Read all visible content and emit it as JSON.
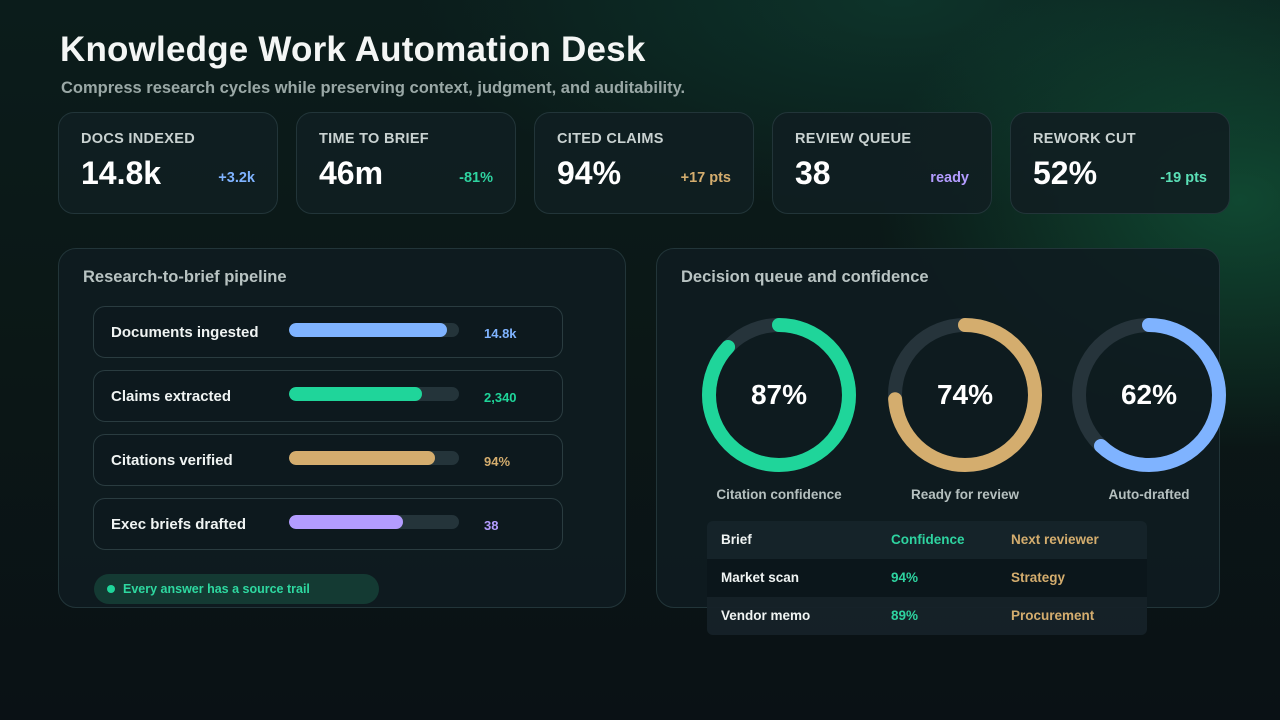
{
  "header": {
    "title": "Knowledge Work Automation Desk",
    "subtitle": "Compress research cycles while preserving context, judgment, and auditability."
  },
  "kpis": [
    {
      "label": "DOCS INDEXED",
      "value": "14.8k",
      "delta": "+3.2k",
      "delta_color": "#7fb3ff"
    },
    {
      "label": "TIME TO BRIEF",
      "value": "46m",
      "delta": "-81%",
      "delta_color": "#2ed3a0"
    },
    {
      "label": "CITED CLAIMS",
      "value": "94%",
      "delta": "+17 pts",
      "delta_color": "#d4ad6e"
    },
    {
      "label": "REVIEW QUEUE",
      "value": "38",
      "delta": "ready",
      "delta_color": "#b39cff"
    },
    {
      "label": "REWORK CUT",
      "value": "52%",
      "delta": "-19 pts",
      "delta_color": "#5be0b7"
    }
  ],
  "pipeline": {
    "title": "Research-to-brief pipeline",
    "rows": [
      {
        "label": "Documents ingested",
        "value": "14.8k",
        "fraction": 0.93,
        "color": "#7fb3ff"
      },
      {
        "label": "Claims extracted",
        "value": "2,340",
        "fraction": 0.78,
        "color": "#1fd59a"
      },
      {
        "label": "Citations verified",
        "value": "94%",
        "fraction": 0.86,
        "color": "#d4ad6e"
      },
      {
        "label": "Exec briefs drafted",
        "value": "38",
        "fraction": 0.67,
        "color": "#b39cff"
      }
    ],
    "footer_pill": "Every answer has a source trail"
  },
  "decision": {
    "title": "Decision queue and confidence",
    "rings": [
      {
        "value": "87%",
        "percent": 87,
        "caption": "Citation confidence",
        "color": "#1fd59a"
      },
      {
        "value": "74%",
        "percent": 74,
        "caption": "Ready for review",
        "color": "#d4ad6e"
      },
      {
        "value": "62%",
        "percent": 62,
        "caption": "Auto-drafted",
        "color": "#7fb3ff"
      }
    ],
    "table": {
      "headers": [
        "Brief",
        "Confidence",
        "Next reviewer"
      ],
      "rows": [
        [
          "Market scan",
          "94%",
          "Strategy"
        ],
        [
          "Vendor memo",
          "89%",
          "Procurement"
        ]
      ]
    }
  },
  "colors": {
    "accent_green": "#1fd59a",
    "accent_gold": "#d4ad6e",
    "accent_blue": "#7fb3ff",
    "accent_purple": "#b39cff",
    "ring_track": "#26343b"
  }
}
